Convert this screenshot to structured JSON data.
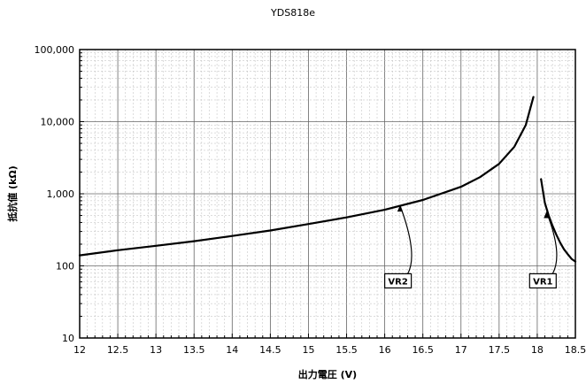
{
  "chart_data": {
    "type": "line",
    "title": "YDS818e",
    "xlabel": "出力電圧 (V)",
    "ylabel": "抵抗値 (kΩ)",
    "xlim": [
      12,
      18.5
    ],
    "ylim": [
      10,
      100000
    ],
    "y_scale": "log",
    "grid": true,
    "x_ticks": [
      "12",
      "12.5",
      "13",
      "13.5",
      "14",
      "14.5",
      "15",
      "15.5",
      "16",
      "16.5",
      "17",
      "17.5",
      "18",
      "18.5"
    ],
    "y_ticks": [
      "10",
      "100",
      "1,000",
      "10,000",
      "100,000"
    ],
    "series": [
      {
        "name": "VR2",
        "x": [
          12.0,
          12.5,
          13.0,
          13.5,
          14.0,
          14.5,
          15.0,
          15.5,
          16.0,
          16.5,
          17.0,
          17.25,
          17.5,
          17.7,
          17.85,
          17.95
        ],
        "y": [
          140,
          165,
          190,
          220,
          260,
          310,
          380,
          470,
          600,
          820,
          1250,
          1700,
          2600,
          4500,
          9000,
          22000
        ]
      },
      {
        "name": "VR1",
        "x": [
          18.05,
          18.1,
          18.15,
          18.2,
          18.25,
          18.3,
          18.35,
          18.4,
          18.45,
          18.5
        ],
        "y": [
          1600,
          750,
          500,
          360,
          270,
          210,
          170,
          145,
          125,
          115
        ]
      }
    ],
    "annotations": [
      {
        "label": "VR2",
        "target_x": 16.2,
        "target_y": 690,
        "box_x": 16.0,
        "box_y": 62
      },
      {
        "label": "VR1",
        "target_x": 18.12,
        "target_y": 560,
        "box_x": 17.9,
        "box_y": 62
      }
    ]
  }
}
